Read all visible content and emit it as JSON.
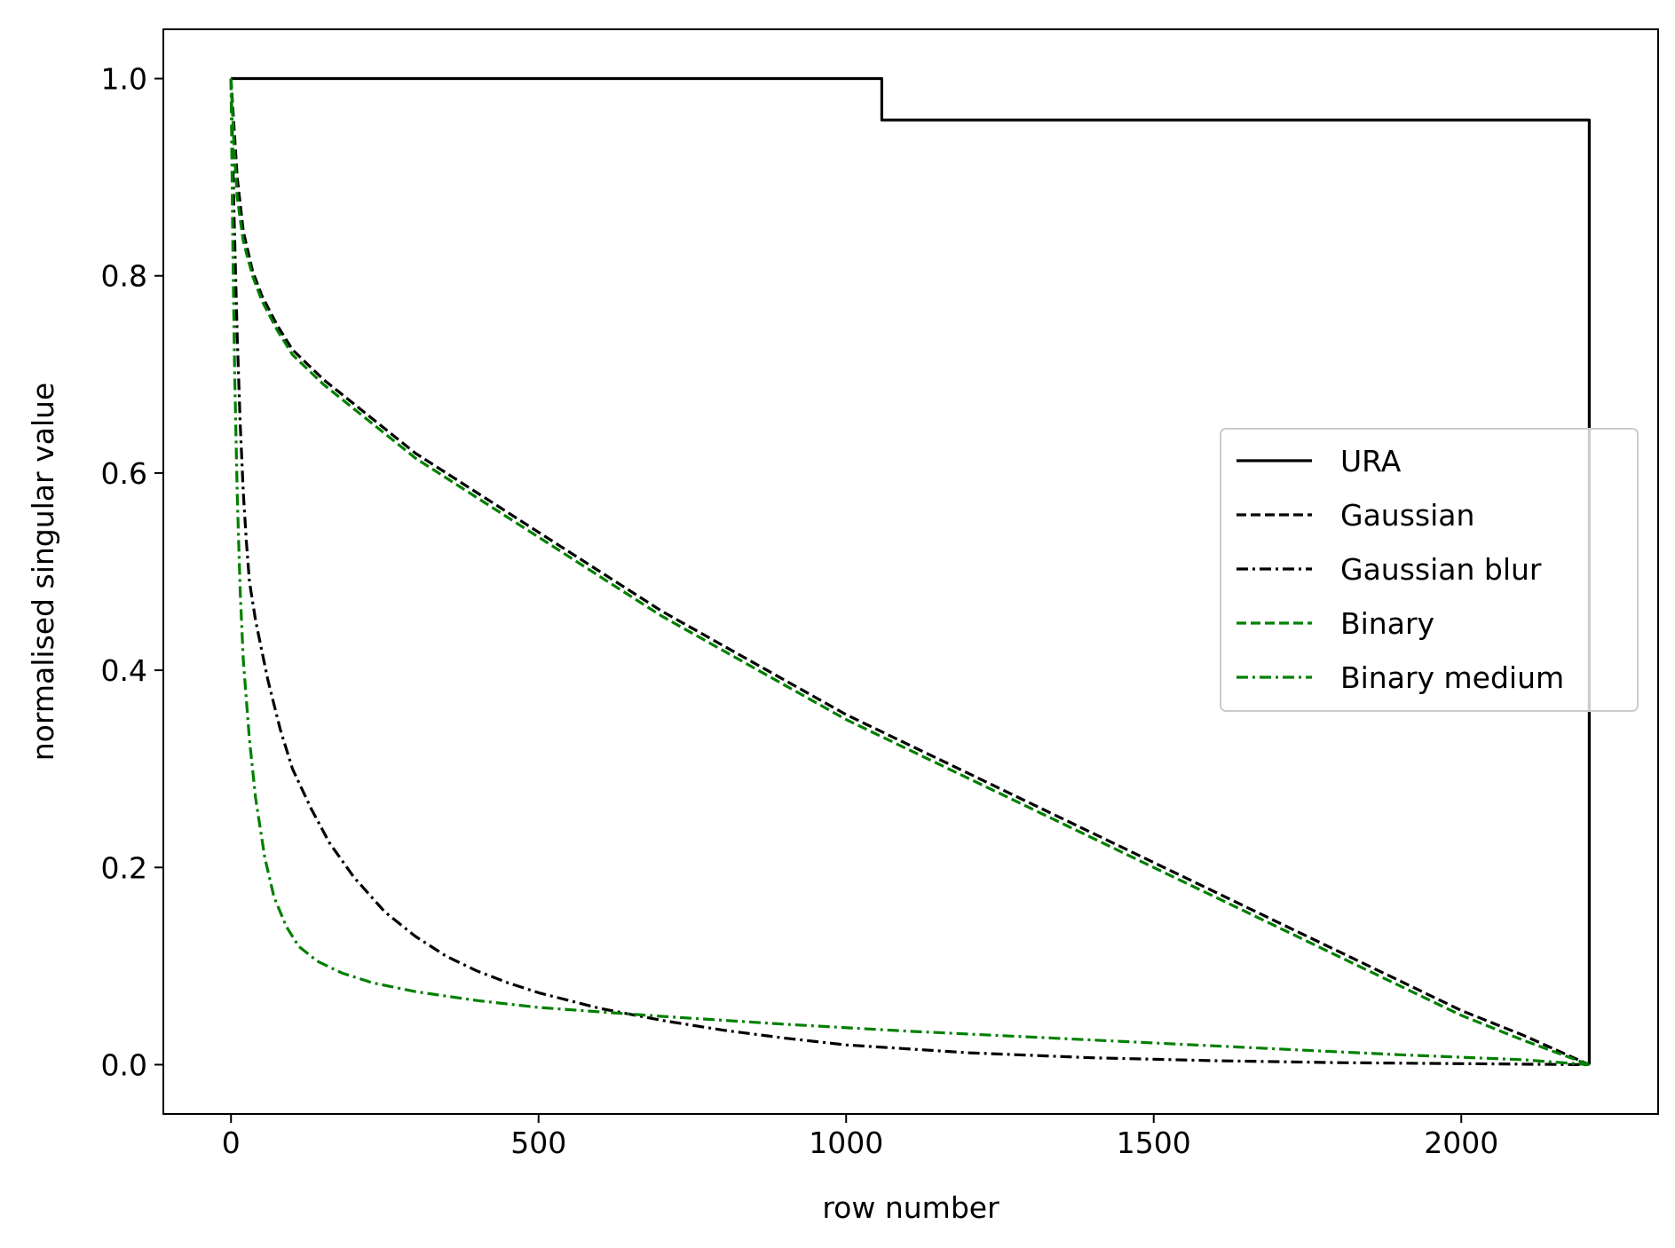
{
  "chart_data": {
    "type": "line",
    "title": "",
    "xlabel": "row number",
    "ylabel": "normalised singular value",
    "xlim": [
      -110,
      2320
    ],
    "ylim": [
      -0.05,
      1.05
    ],
    "xticks": [
      0,
      500,
      1000,
      1500,
      2000
    ],
    "xtick_labels": [
      "0",
      "500",
      "1000",
      "1500",
      "2000"
    ],
    "yticks": [
      0.0,
      0.2,
      0.4,
      0.6,
      0.8,
      1.0
    ],
    "ytick_labels": [
      "0.0",
      "0.2",
      "0.4",
      "0.6",
      "0.8",
      "1.0"
    ],
    "grid": false,
    "legend_position": "center-right",
    "series": [
      {
        "name": "URA",
        "color": "#000000",
        "style": "solid",
        "x": [
          0,
          1058,
          1058,
          2208,
          2208
        ],
        "y": [
          1.0,
          1.0,
          0.958,
          0.958,
          0.0
        ]
      },
      {
        "name": "Gaussian",
        "color": "#000000",
        "style": "dashed",
        "x": [
          0,
          5,
          10,
          20,
          35,
          50,
          75,
          100,
          150,
          200,
          250,
          300,
          400,
          500,
          600,
          700,
          800,
          900,
          1000,
          1100,
          1200,
          1300,
          1400,
          1500,
          1600,
          1700,
          1800,
          1900,
          2000,
          2100,
          2208
        ],
        "y": [
          1.0,
          0.95,
          0.9,
          0.845,
          0.805,
          0.78,
          0.75,
          0.725,
          0.695,
          0.67,
          0.645,
          0.62,
          0.58,
          0.54,
          0.5,
          0.46,
          0.425,
          0.39,
          0.355,
          0.325,
          0.295,
          0.265,
          0.235,
          0.205,
          0.175,
          0.145,
          0.115,
          0.085,
          0.055,
          0.03,
          0.0
        ]
      },
      {
        "name": "Gaussian blur",
        "color": "#000000",
        "style": "dashdot",
        "x": [
          0,
          5,
          10,
          15,
          20,
          25,
          30,
          40,
          50,
          60,
          80,
          100,
          130,
          160,
          200,
          250,
          300,
          350,
          400,
          450,
          500,
          600,
          700,
          800,
          900,
          1000,
          1200,
          1400,
          1600,
          1800,
          2000,
          2208
        ],
        "y": [
          1.0,
          0.86,
          0.74,
          0.65,
          0.58,
          0.53,
          0.49,
          0.45,
          0.42,
          0.39,
          0.34,
          0.3,
          0.26,
          0.225,
          0.19,
          0.155,
          0.13,
          0.11,
          0.095,
          0.083,
          0.073,
          0.057,
          0.045,
          0.035,
          0.027,
          0.02,
          0.012,
          0.007,
          0.004,
          0.002,
          0.001,
          0.0
        ]
      },
      {
        "name": "Binary",
        "color": "#008000",
        "style": "dashed",
        "x": [
          0,
          5,
          10,
          20,
          35,
          50,
          75,
          100,
          150,
          200,
          250,
          300,
          400,
          500,
          600,
          700,
          800,
          900,
          1000,
          1100,
          1200,
          1300,
          1400,
          1500,
          1600,
          1700,
          1800,
          1900,
          2000,
          2100,
          2208
        ],
        "y": [
          1.0,
          0.93,
          0.88,
          0.835,
          0.8,
          0.775,
          0.745,
          0.72,
          0.69,
          0.665,
          0.64,
          0.615,
          0.575,
          0.535,
          0.495,
          0.455,
          0.42,
          0.385,
          0.35,
          0.32,
          0.29,
          0.26,
          0.23,
          0.2,
          0.17,
          0.14,
          0.11,
          0.08,
          0.05,
          0.025,
          0.0
        ]
      },
      {
        "name": "Binary medium",
        "color": "#008000",
        "style": "dashdot",
        "x": [
          0,
          3,
          6,
          10,
          15,
          20,
          30,
          40,
          55,
          70,
          90,
          110,
          140,
          180,
          230,
          300,
          400,
          500,
          700,
          900,
          1100,
          1300,
          1500,
          1700,
          1900,
          2100,
          2208
        ],
        "y": [
          1.0,
          0.83,
          0.7,
          0.58,
          0.48,
          0.41,
          0.33,
          0.27,
          0.21,
          0.17,
          0.14,
          0.12,
          0.105,
          0.093,
          0.083,
          0.074,
          0.065,
          0.058,
          0.049,
          0.041,
          0.034,
          0.028,
          0.022,
          0.016,
          0.01,
          0.005,
          0.0
        ]
      }
    ]
  }
}
